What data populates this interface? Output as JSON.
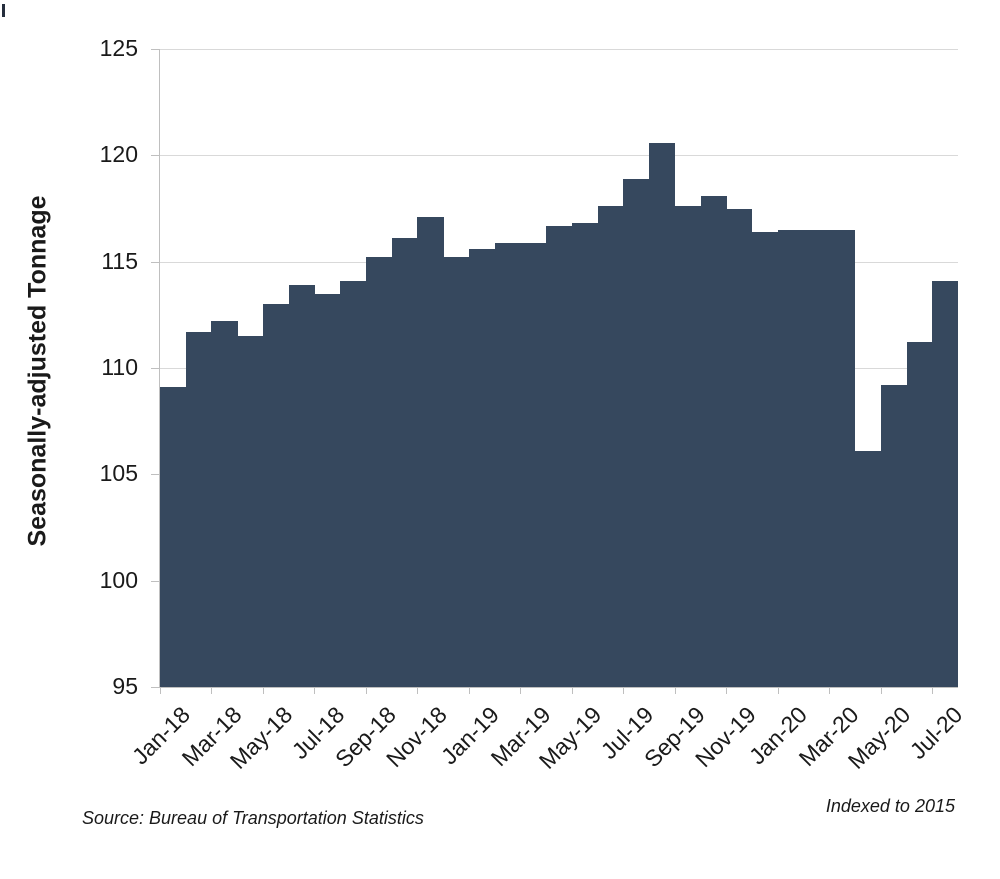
{
  "chart_data": {
    "type": "bar",
    "title": "",
    "xlabel": "",
    "ylabel": "Seasonally-adjusted Tonnage",
    "ylim": [
      95,
      125
    ],
    "yticks": [
      95,
      100,
      105,
      110,
      115,
      120,
      125
    ],
    "grid": true,
    "legend_position": "none",
    "categories": [
      "Jan-18",
      "Feb-18",
      "Mar-18",
      "Apr-18",
      "May-18",
      "Jun-18",
      "Jul-18",
      "Aug-18",
      "Sep-18",
      "Oct-18",
      "Nov-18",
      "Dec-18",
      "Jan-19",
      "Feb-19",
      "Mar-19",
      "Apr-19",
      "May-19",
      "Jun-19",
      "Jul-19",
      "Aug-19",
      "Sep-19",
      "Oct-19",
      "Nov-19",
      "Dec-19",
      "Jan-20",
      "Feb-20",
      "Mar-20",
      "Apr-20",
      "May-20",
      "Jun-20",
      "Jul-20"
    ],
    "values": [
      109.1,
      111.7,
      112.2,
      111.5,
      113.0,
      113.9,
      113.5,
      114.1,
      115.2,
      116.1,
      117.1,
      115.2,
      115.6,
      115.9,
      115.9,
      116.7,
      116.8,
      117.6,
      118.9,
      120.6,
      117.6,
      118.1,
      117.5,
      116.4,
      116.5,
      116.5,
      116.5,
      106.1,
      109.2,
      111.2,
      114.1
    ],
    "xtick_labels": [
      "Jan-18",
      "Mar-18",
      "May-18",
      "Jul-18",
      "Sep-18",
      "Nov-18",
      "Jan-19",
      "Mar-19",
      "May-19",
      "Jul-19",
      "Sep-19",
      "Nov-19",
      "Jan-20",
      "Mar-20",
      "May-20",
      "Jul-20"
    ],
    "xtick_every_n_bars": 2,
    "colors": {
      "bar": "#36485e",
      "gridline": "#d9d9d9",
      "axis": "#bfbfbf",
      "tick": "#bfbfbf",
      "text": "#1a1a1a"
    }
  },
  "footer": {
    "source": "Source: Bureau of Transportation Statistics",
    "note": "Indexed to 2015"
  }
}
